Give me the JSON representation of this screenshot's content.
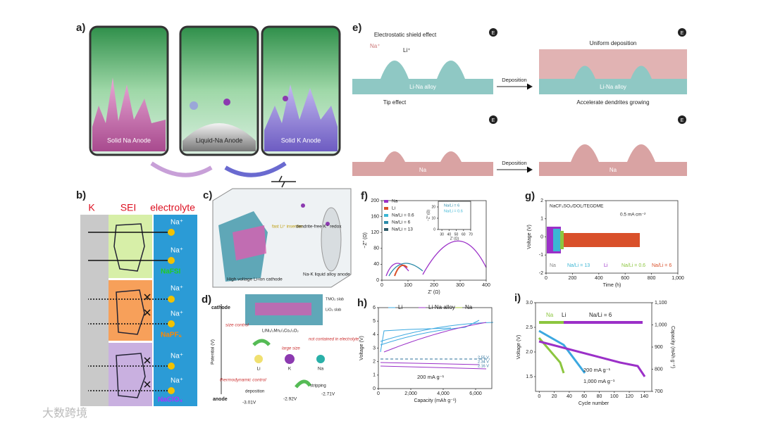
{
  "watermark": "大数跨境",
  "a": {
    "label": "a)",
    "anodes": [
      "Solid Na Anode",
      "Liquid-Na Anode",
      "Solid K Anode"
    ]
  },
  "b": {
    "label": "b)",
    "headers": [
      "K",
      "SEI",
      "electrolyte"
    ],
    "ion": "Na⁺",
    "salts": [
      "NaFSI",
      "NaPF₆",
      "NaClO₄"
    ]
  },
  "c": {
    "label": "c)",
    "texts": [
      "fast Li⁺ insertion",
      "dendrite-free K⁺ redox",
      "High voltage Li-ion cathode",
      "Na-K liquid alloy anode"
    ]
  },
  "d": {
    "label": "d)",
    "cathode": "cathode",
    "anode": "anode",
    "axis": "Potential (V)",
    "size": "size control",
    "thermo": "thermodynamic control",
    "slabs": [
      "TMO₂ slab",
      "LiO₂ slab"
    ],
    "formula": "LiNi₁/₃Mn₁/₃Co₁/₃O₂",
    "elements": [
      "Li",
      "K",
      "Na"
    ],
    "large": "large size",
    "notin": "not contained in electrolyte",
    "deposition": "deposition",
    "stripping": "stripping",
    "potentials": [
      "-3.01V",
      "-2.92V",
      "-2.71V"
    ]
  },
  "e": {
    "label": "e)",
    "shield": "Electrostatic shield effect",
    "na": "Na⁺",
    "li": "Li⁺",
    "alloy": "Li-Na alloy",
    "deposition": "Deposition",
    "uniform": "Uniform deposition",
    "tip": "Tip effect",
    "metal": "Na",
    "accel": "Accelerate dendrites growing",
    "field": "E"
  },
  "f": {
    "label": "f)",
    "ylabel": "−Z″ (Ω)",
    "xlabel": "Z′ (Ω)",
    "xlim": [
      0,
      400
    ],
    "ylim": [
      0,
      200
    ],
    "xticks": [
      0,
      100,
      200,
      300,
      400
    ],
    "yticks": [
      0,
      40,
      80,
      120,
      160,
      200
    ],
    "legend": [
      "Na",
      "Li",
      "Na/Li = 0.6",
      "Na/Li = 6",
      "Na/Li = 13"
    ],
    "colors": [
      "#9b30c8",
      "#d9502a",
      "#3bb6d4",
      "#2a8aa8",
      "#2f5a68"
    ],
    "inset": {
      "xlim": [
        25,
        70
      ],
      "ylim": [
        0,
        25
      ],
      "xticks": [
        30,
        40,
        50,
        60,
        70
      ],
      "yticks": [
        0,
        10,
        20
      ],
      "ylabel": "−Z″ (Ω)",
      "xlabel": "Z′ (Ω)",
      "legend": [
        "Na/Li = 6",
        "Na/Li = 0.6"
      ]
    }
  },
  "g": {
    "label": "g)",
    "title": "NaCF₃SO₃/DOL/TEGDME",
    "note": "0.5 mA cm⁻²",
    "ylabel": "Voltage (V)",
    "xlabel": "Time (h)",
    "xlim": [
      0,
      1000
    ],
    "ylim": [
      -2,
      2
    ],
    "xticks": [
      0,
      200,
      400,
      600,
      800,
      {
        "value": 1000,
        "label": "1,000"
      }
    ],
    "yticks": [
      -2,
      -1,
      0,
      1,
      2
    ],
    "legend": [
      "Na",
      "Na/Li = 13",
      "Li",
      "Na/Li = 0.6",
      "Na/Li = 6"
    ],
    "colors": [
      "#888888",
      "#3bb6d4",
      "#9b30c8",
      "#8cc63f",
      "#d9502a"
    ]
  },
  "h": {
    "label": "h)",
    "ylabel": "Voltage (V)",
    "xlabel": "Capacity (mAh g⁻¹)",
    "xlim": [
      0,
      7000
    ],
    "ylim": [
      0,
      6
    ],
    "xticks": [
      0,
      {
        "value": 2000,
        "label": "2,000"
      },
      {
        "value": 4000,
        "label": "4,000"
      },
      {
        "value": 6000,
        "label": "6,000"
      }
    ],
    "yticks": [
      0,
      1,
      2,
      3,
      4,
      5,
      6
    ],
    "legend": [
      "Li",
      "Li-Na alloy",
      "Na"
    ],
    "colors": [
      "#3ba8e0",
      "#9b30c8",
      "#a5c63b"
    ],
    "levels": [
      "2.55 V",
      "2.34 V",
      "2.16 V"
    ],
    "rate": "200 mA g⁻¹"
  },
  "i": {
    "label": "i)",
    "ylabel": "Voltage (V)",
    "y2label": "Capacity (mAh g⁻¹)",
    "xlabel": "Cycle number",
    "xlim": [
      -5,
      150
    ],
    "ylim": [
      1.2,
      3.0
    ],
    "y2lim": [
      700,
      1100
    ],
    "xticks": [
      0,
      20,
      40,
      60,
      80,
      100,
      120,
      140
    ],
    "yticks": [
      1.5,
      {
        "value": 2,
        "label": "2.0"
      },
      2.5,
      {
        "value": 3,
        "label": "3.0"
      }
    ],
    "y2ticks": [
      700,
      800,
      900,
      {
        "value": 1000,
        "label": "1,000"
      },
      {
        "value": 1100,
        "label": "1,100"
      }
    ],
    "labels": [
      "Na",
      "Li",
      "Na/Li = 6"
    ],
    "colors": [
      "#8cc63f",
      "#3ba8e0",
      "#9b30c8"
    ],
    "rates": [
      "200 mA g⁻¹",
      "1,000 mA g⁻¹"
    ]
  }
}
